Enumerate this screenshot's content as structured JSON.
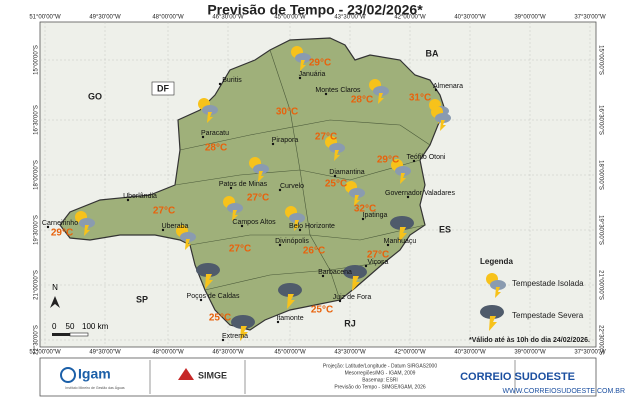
{
  "title": "Previsão de Tempo - 23/02/2026*",
  "graticule": {
    "longitudes": [
      "51°00'00\"W",
      "49°30'00\"W",
      "48°00'00\"W",
      "46°30'00\"W",
      "45°00'00\"W",
      "43°30'00\"W",
      "42°00'00\"W",
      "40°30'00\"W",
      "39°00'00\"W",
      "37°30'00\"W"
    ],
    "latitudes": [
      "15°00'00\"S",
      "16°30'00\"S",
      "18°00'00\"S",
      "19°30'00\"S",
      "21°00'00\"S",
      "22°30'00\"S"
    ]
  },
  "states": [
    "BA",
    "GO",
    "DF",
    "ES",
    "SP",
    "RJ"
  ],
  "cities": [
    "Buritis",
    "Januária",
    "Almenara",
    "Montes Claros",
    "Paracatu",
    "Pirapora",
    "Teófilo Otoni",
    "Diamantina",
    "Curvelo",
    "Patos de Minas",
    "Uberlândia",
    "Governador Valadares",
    "Carneirinho",
    "Uberaba",
    "Campos Altos",
    "Belo Horizonte",
    "Ipatinga",
    "Manhuaçu",
    "Divinópolis",
    "Viçosa",
    "Barbacena",
    "Poços de Caldas",
    "Juiz de Fora",
    "Itamonte",
    "Extrema"
  ],
  "temperatures": [
    "29°C",
    "28°C",
    "31°C",
    "30°C",
    "28°C",
    "27°C",
    "29°C",
    "25°C",
    "27°C",
    "27°C",
    "32°C",
    "29°C",
    "27°C",
    "26°C",
    "27°C",
    "25°C",
    "25°C"
  ],
  "legend": {
    "title": "Legenda",
    "items": [
      "Tempestade Isolada",
      "Tempestade Severa"
    ]
  },
  "scale": {
    "north": "N",
    "labels": [
      "0",
      "50",
      "100 km"
    ]
  },
  "note": "*Válido até às 10h do dia 24/02/2026.",
  "footer": {
    "logos": [
      "Igam",
      "SIMGE"
    ],
    "caption": "Instituto Mineiro de Gestão das Águas",
    "projection": [
      "Projeção: Latitude/Longitude - Datum SIRGAS2000",
      "Mesorregiões/MG - IGAM, 2009",
      "Basemap: ESRI",
      "Previsão do Tempo - SIMGE/IGAM, 2026"
    ],
    "brand": "CORREIO SUDOESTE",
    "url": "WWW.CORREIOSUDOESTE.COM.BR"
  }
}
